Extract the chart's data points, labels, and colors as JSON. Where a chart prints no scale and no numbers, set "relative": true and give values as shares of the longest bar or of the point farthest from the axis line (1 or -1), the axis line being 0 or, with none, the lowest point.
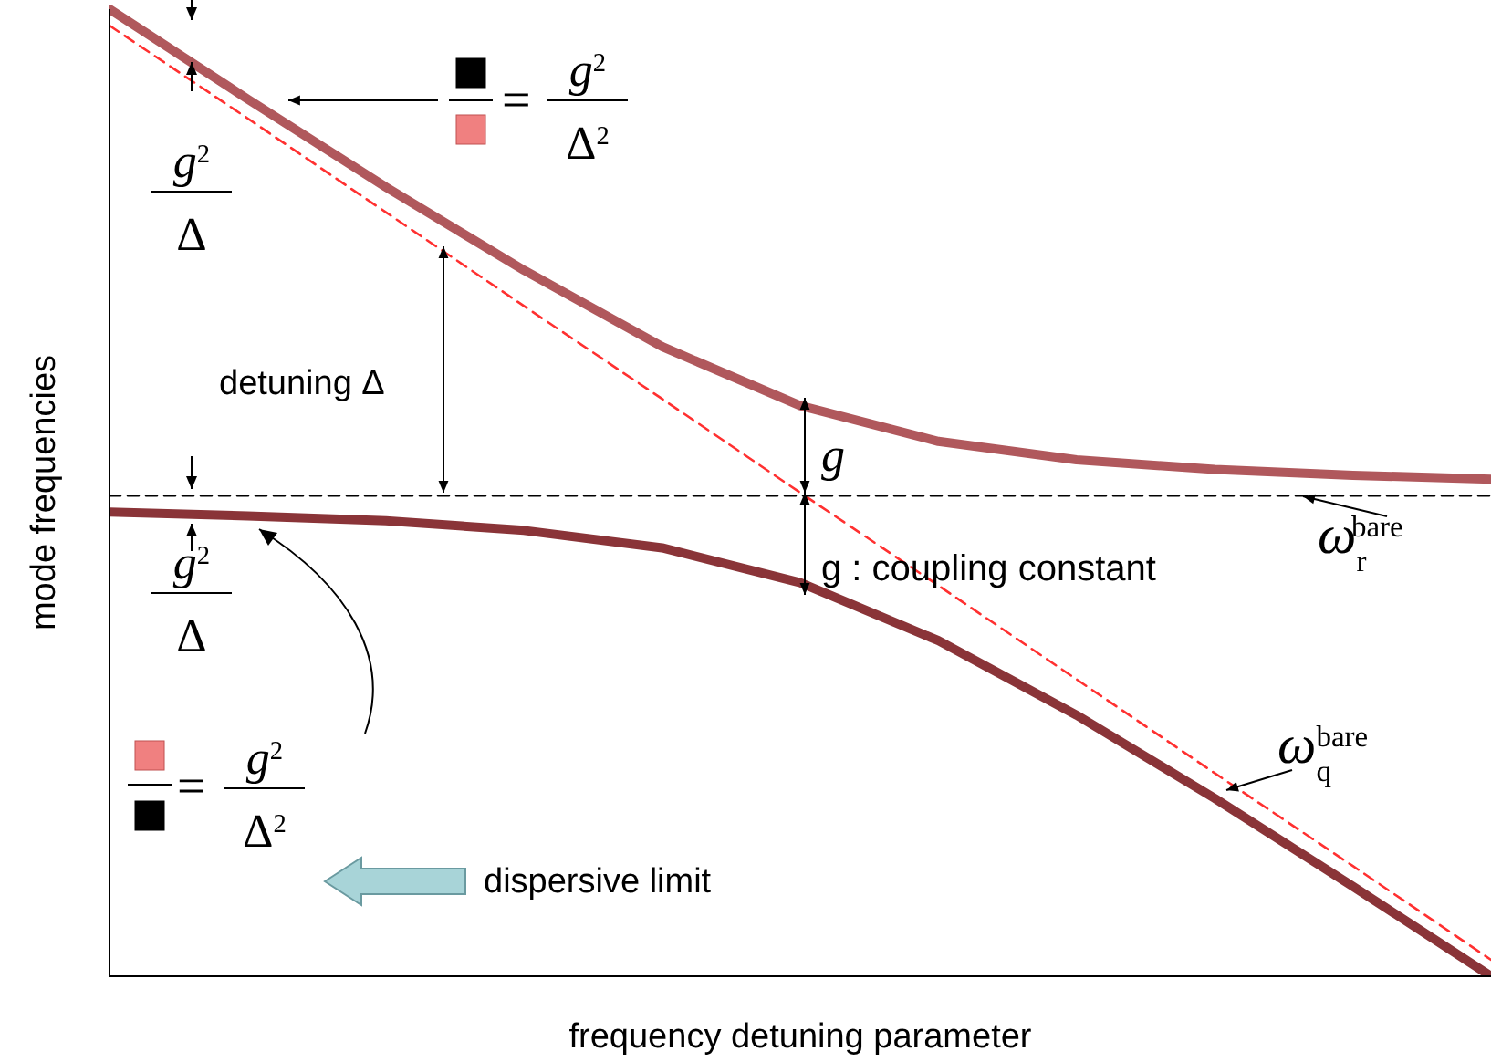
{
  "chart_data": {
    "type": "line",
    "xlabel": "frequency detuning parameter",
    "ylabel": "mode frequencies",
    "relative": true,
    "categories": [
      null,
      null,
      null,
      null,
      null,
      null,
      null,
      null,
      null,
      null,
      null
    ],
    "series": [
      {
        "color": "#b0585c",
        "values": [
          1.0,
          0.907,
          0.816,
          0.73,
          0.651,
          0.59,
          0.553,
          0.534,
          0.524,
          0.518,
          0.514
        ]
      },
      {
        "color": "#8a3438",
        "values": [
          0.48,
          0.476,
          0.471,
          0.461,
          0.443,
          0.407,
          0.347,
          0.27,
          0.184,
          0.093,
          0.0
        ]
      },
      {
        "color": "#ff3030",
        "line_style": "dashed",
        "values": [
          0.983,
          0.887,
          0.79,
          0.693,
          0.597,
          0.5,
          0.404,
          0.307,
          0.21,
          0.114,
          0.017
        ]
      },
      {
        "color": "#000000",
        "line_style": "dashed",
        "values": [
          0.497,
          0.497,
          0.497,
          0.497,
          0.497,
          0.497,
          0.497,
          0.497,
          0.497,
          0.497,
          0.497
        ]
      }
    ],
    "annotations": [
      "detuning Δ",
      "g",
      "g : coupling constant",
      "g$^{2}$",
      "Δ",
      "g$^{2}$",
      "Δ",
      "=",
      "g$^{2}$",
      "Δ$^{2}$",
      "=",
      "g$^{2}$",
      "Δ$^{2}$",
      "dispersive limit",
      "ω$_{q}$$^{bare}$",
      "ω$_{r}$$^{bare}$"
    ],
    "line_style": "solid"
  }
}
